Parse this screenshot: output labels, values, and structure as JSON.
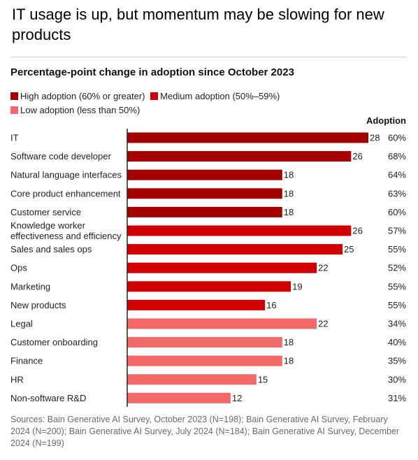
{
  "title": "IT usage is up, but momentum may be slowing for new products",
  "chart_data": {
    "type": "bar",
    "orientation": "horizontal",
    "title": "Percentage-point change in adoption since October 2023",
    "adoption_header": "Adoption",
    "legend": [
      {
        "label": "High adoption (60% or greater)",
        "color": "#a50000"
      },
      {
        "label": "Medium adoption (50%–59%)",
        "color": "#d10000"
      },
      {
        "label": "Low adoption (less than 50%)",
        "color": "#f46a6a"
      }
    ],
    "categories": [
      "IT",
      "Software code developer",
      "Natural language interfaces",
      "Core product enhancement",
      "Customer service",
      "Knowledge worker\neffectiveness and efficiency",
      "Sales and sales ops",
      "Ops",
      "Marketing",
      "New products",
      "Legal",
      "Customer onboarding",
      "Finance",
      "HR",
      "Non-software R&D"
    ],
    "values": [
      28,
      26,
      18,
      18,
      18,
      26,
      25,
      22,
      19,
      16,
      22,
      18,
      18,
      15,
      12
    ],
    "adoption": [
      "60%",
      "68%",
      "64%",
      "63%",
      "60%",
      "57%",
      "55%",
      "52%",
      "55%",
      "55%",
      "34%",
      "40%",
      "35%",
      "30%",
      "31%"
    ],
    "tiers": [
      "high",
      "high",
      "high",
      "high",
      "high",
      "medium",
      "medium",
      "medium",
      "medium",
      "medium",
      "low",
      "low",
      "low",
      "low",
      "low"
    ],
    "tier_colors": {
      "high": "#a50000",
      "medium": "#d10000",
      "low": "#f46a6a"
    },
    "xlim": [
      0,
      28
    ],
    "grid": false
  },
  "source": "Sources: Bain Generative AI Survey, October 2023 (N=198); Bain Generative AI Survey, February 2024 (N=200); Bain Generative AI Survey, July 2024 (N=184); Bain Generative AI Survey, December 2024 (N=199)"
}
